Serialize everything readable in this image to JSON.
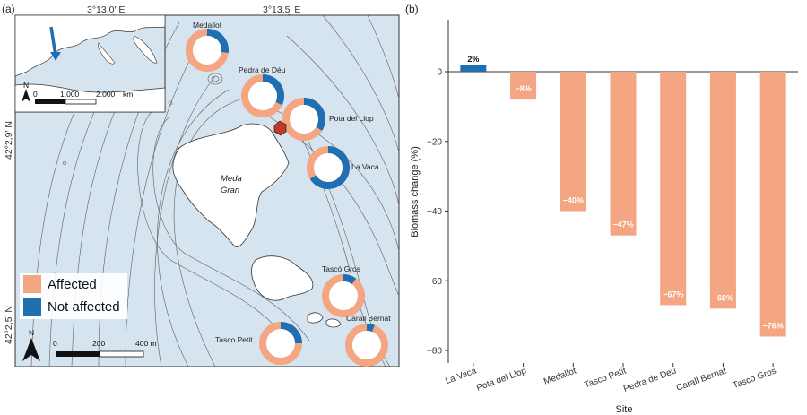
{
  "panel_a": {
    "label": "(a)",
    "coords": {
      "lon_1": "3°13,0′ E",
      "lon_2": "3°13,5′ E",
      "lat_1": "42°2,9′ N",
      "lat_2": "42°2,5′ N"
    },
    "island_name_1": "Meda",
    "island_name_2": "Gran",
    "inset": {
      "scale_0": "0",
      "scale_1": "1.000",
      "scale_2": "2.000",
      "scale_unit": "km",
      "north": "N"
    },
    "scale_bar": {
      "l0": "0",
      "l1": "200",
      "l2": "400 m"
    },
    "north": "N",
    "legend": {
      "affected": "Affected",
      "not_affected": "Not affected"
    },
    "colors": {
      "affected": "#f4a582",
      "not_affected": "#1f6fb2",
      "sea": "#d6e4f0",
      "land": "#ffffff",
      "marker": "#c0392b"
    },
    "sites": [
      {
        "name": "Medallot",
        "affected_fraction": 0.73
      },
      {
        "name": "Pedra de Déu",
        "affected_fraction": 0.68
      },
      {
        "name": "Pota del Llop",
        "affected_fraction": 0.66
      },
      {
        "name": "La Vaca",
        "affected_fraction": 0.34
      },
      {
        "name": "Tascó Gros",
        "affected_fraction": 0.9
      },
      {
        "name": "Carall Bernat",
        "affected_fraction": 0.94
      },
      {
        "name": "Tasco Petit",
        "affected_fraction": 0.75
      }
    ]
  },
  "chart_data": {
    "type": "bar",
    "panel_label": "(b)",
    "categories": [
      "La Vaca",
      "Pota del Llop",
      "Medallot",
      "Tasco Petit",
      "Pedra de Deu",
      "Carall Bernat",
      "Tasco Gros"
    ],
    "values": [
      2,
      -8,
      -40,
      -47,
      -67,
      -68,
      -76
    ],
    "value_labels": [
      "2%",
      "−8%",
      "−40%",
      "−47%",
      "−67%",
      "−68%",
      "−76%"
    ],
    "colors": [
      "#1f6fb2",
      "#f4a582",
      "#f4a582",
      "#f4a582",
      "#f4a582",
      "#f4a582",
      "#f4a582"
    ],
    "xlabel": "Site",
    "ylabel": "Biomass change (%)",
    "ylim": [
      -82,
      10
    ],
    "yticks": [
      0,
      -20,
      -40,
      -60,
      -80
    ],
    "ytick_labels": [
      "0",
      "−20",
      "−40",
      "−60",
      "−80"
    ],
    "grid": false
  }
}
